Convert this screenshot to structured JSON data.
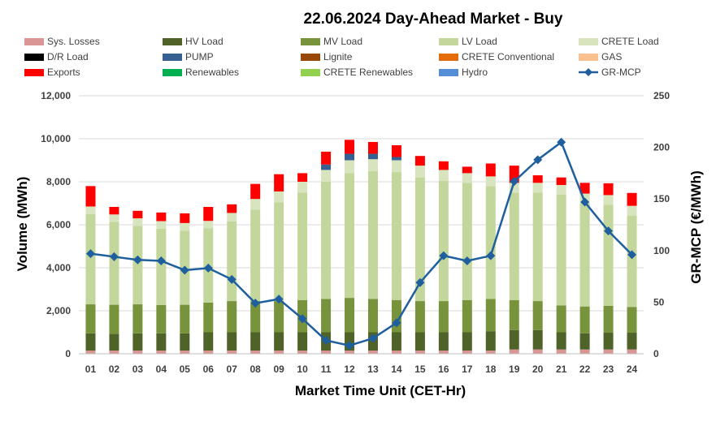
{
  "chart_data": {
    "type": "bar",
    "title": "22.06.2024  Day-Ahead Market - Buy",
    "xlabel": "Market Time Unit (CET-Hr)",
    "ylabel": "Volume (MWh)",
    "y2label": "GR-MCP (€/MWh)",
    "ylim": [
      0,
      12000
    ],
    "y2lim": [
      0,
      250
    ],
    "yticks": [
      "0",
      "2,000",
      "4,000",
      "6,000",
      "8,000",
      "10,000",
      "12,000"
    ],
    "y2ticks": [
      "0",
      "50",
      "100",
      "150",
      "200",
      "250"
    ],
    "categories": [
      "01",
      "02",
      "03",
      "04",
      "05",
      "06",
      "07",
      "08",
      "09",
      "10",
      "11",
      "12",
      "13",
      "14",
      "15",
      "16",
      "17",
      "18",
      "19",
      "20",
      "21",
      "22",
      "23",
      "24"
    ],
    "series": [
      {
        "name": "Sys. Losses",
        "color": "#d99694",
        "kind": "bar",
        "values": [
          150,
          150,
          150,
          150,
          150,
          150,
          150,
          150,
          150,
          150,
          150,
          150,
          150,
          150,
          150,
          150,
          150,
          150,
          200,
          200,
          200,
          200,
          200,
          200
        ]
      },
      {
        "name": "HV Load",
        "color": "#4f6228",
        "kind": "bar",
        "values": [
          800,
          780,
          800,
          800,
          800,
          850,
          850,
          850,
          850,
          850,
          850,
          850,
          850,
          850,
          850,
          850,
          850,
          900,
          900,
          900,
          800,
          750,
          780,
          780
        ]
      },
      {
        "name": "MV Load",
        "color": "#77933c",
        "kind": "bar",
        "values": [
          1350,
          1350,
          1350,
          1320,
          1330,
          1380,
          1450,
          1450,
          1450,
          1500,
          1550,
          1600,
          1550,
          1500,
          1450,
          1450,
          1500,
          1500,
          1400,
          1350,
          1250,
          1250,
          1250,
          1200
        ]
      },
      {
        "name": "LV Load",
        "color": "#c3d69b",
        "kind": "bar",
        "values": [
          4200,
          3850,
          3650,
          3550,
          3450,
          3450,
          3700,
          4250,
          4600,
          5000,
          5450,
          5800,
          5950,
          5950,
          5750,
          5600,
          5450,
          5250,
          5000,
          5050,
          5150,
          4800,
          4700,
          4250
        ]
      },
      {
        "name": "CRETE Load",
        "color": "#d7e4bd",
        "kind": "bar",
        "values": [
          350,
          350,
          350,
          350,
          350,
          350,
          400,
          500,
          500,
          500,
          550,
          600,
          550,
          550,
          550,
          500,
          450,
          450,
          450,
          450,
          450,
          450,
          450,
          450
        ]
      },
      {
        "name": "D/R Load",
        "color": "#000000",
        "kind": "bar",
        "values": [
          0,
          0,
          0,
          0,
          0,
          0,
          0,
          0,
          0,
          0,
          0,
          0,
          0,
          0,
          0,
          0,
          0,
          0,
          0,
          0,
          0,
          0,
          0,
          0
        ]
      },
      {
        "name": "PUMP",
        "color": "#376092",
        "kind": "bar",
        "values": [
          0,
          0,
          0,
          0,
          0,
          0,
          0,
          0,
          0,
          0,
          250,
          300,
          250,
          150,
          0,
          0,
          0,
          0,
          0,
          0,
          0,
          0,
          0,
          0
        ]
      },
      {
        "name": "Lignite",
        "color": "#984807",
        "kind": "bar",
        "values": [
          0,
          0,
          0,
          0,
          0,
          0,
          0,
          0,
          0,
          0,
          0,
          0,
          0,
          0,
          0,
          0,
          0,
          0,
          0,
          0,
          0,
          0,
          0,
          0
        ]
      },
      {
        "name": "CRETE Conventional",
        "color": "#e46c0a",
        "kind": "bar",
        "values": [
          0,
          0,
          0,
          0,
          0,
          0,
          0,
          0,
          0,
          0,
          0,
          0,
          0,
          0,
          0,
          0,
          0,
          0,
          0,
          0,
          0,
          0,
          0,
          0
        ]
      },
      {
        "name": "GAS",
        "color": "#fac090",
        "kind": "bar",
        "values": [
          0,
          0,
          0,
          0,
          0,
          0,
          0,
          0,
          0,
          0,
          0,
          0,
          0,
          0,
          0,
          0,
          0,
          0,
          0,
          0,
          0,
          0,
          0,
          0
        ]
      },
      {
        "name": "Exports",
        "color": "#ff0000",
        "kind": "bar",
        "values": [
          950,
          350,
          350,
          400,
          450,
          650,
          400,
          700,
          800,
          400,
          600,
          650,
          550,
          550,
          450,
          400,
          300,
          600,
          800,
          350,
          350,
          500,
          550,
          600
        ]
      },
      {
        "name": "Renewables",
        "color": "#00b050",
        "kind": "bar",
        "values": [
          0,
          0,
          0,
          0,
          0,
          0,
          0,
          0,
          0,
          0,
          0,
          0,
          0,
          0,
          0,
          0,
          0,
          0,
          0,
          0,
          0,
          0,
          0,
          0
        ]
      },
      {
        "name": "CRETE Renewables",
        "color": "#92d050",
        "kind": "bar",
        "values": [
          0,
          0,
          0,
          0,
          0,
          0,
          0,
          0,
          0,
          0,
          0,
          0,
          0,
          0,
          0,
          0,
          0,
          0,
          0,
          0,
          0,
          0,
          0,
          0
        ]
      },
      {
        "name": "Hydro",
        "color": "#558ed5",
        "kind": "bar",
        "values": [
          0,
          0,
          0,
          0,
          0,
          0,
          0,
          0,
          0,
          0,
          0,
          0,
          0,
          0,
          0,
          0,
          0,
          0,
          0,
          0,
          0,
          0,
          0,
          0
        ]
      },
      {
        "name": "GR-MCP",
        "color": "#1f5f9e",
        "kind": "line",
        "axis": "right",
        "values": [
          97,
          94,
          91,
          90,
          81,
          83,
          72,
          49,
          53,
          34,
          13,
          8,
          15,
          30,
          69,
          95,
          90,
          95,
          167,
          188,
          205,
          147,
          119,
          96
        ]
      }
    ]
  }
}
